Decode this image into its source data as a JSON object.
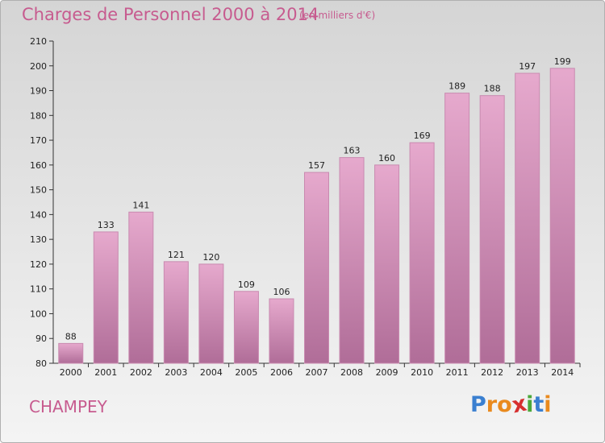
{
  "header": {
    "title": "Charges de Personnel 2000 à 2014",
    "subtitle": "(en milliers d'€)"
  },
  "footer": {
    "commune": "CHAMPEY",
    "logo_letters": [
      "P",
      "r",
      "o",
      "x",
      "i",
      "t",
      "i"
    ],
    "logo_colors": [
      "#3a7fd0",
      "#e98a1e",
      "#e98a1e",
      "#d62f2f",
      "#4aa83a",
      "#3a7fd0",
      "#e98a1e"
    ]
  },
  "colors": {
    "bar_top": "#e6a9cd",
    "bar_bottom": "#b06d98",
    "bar_stroke": "#c98ab0",
    "accent": "#c75b8f"
  },
  "chart_data": {
    "type": "bar",
    "title": "Charges de Personnel 2000 à 2014",
    "subtitle": "(en milliers d'€)",
    "categories": [
      "2000",
      "2001",
      "2002",
      "2003",
      "2004",
      "2005",
      "2006",
      "2007",
      "2008",
      "2009",
      "2010",
      "2011",
      "2012",
      "2013",
      "2014"
    ],
    "values": [
      88,
      133,
      141,
      121,
      120,
      109,
      106,
      157,
      163,
      160,
      169,
      189,
      188,
      197,
      199
    ],
    "ylim": [
      80,
      210
    ],
    "yticks": [
      80,
      90,
      100,
      110,
      120,
      130,
      140,
      150,
      160,
      170,
      180,
      190,
      200,
      210
    ],
    "xlabel": "",
    "ylabel": "",
    "grid": false,
    "legend": "none"
  }
}
